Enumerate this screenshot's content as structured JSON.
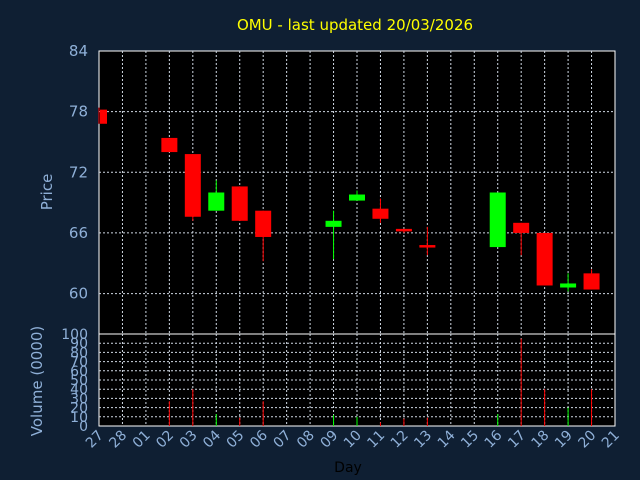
{
  "chart_data": {
    "type": "candlestick",
    "title": "OMU - last updated 20/03/2026",
    "ylabel": "Price",
    "volume_ylabel": "Volume (0000)",
    "xlabel": "Day",
    "ylim": [
      56,
      84
    ],
    "yticks": [
      60,
      66,
      72,
      78,
      84
    ],
    "volume_ylim": [
      0,
      100
    ],
    "volume_yticks": [
      0,
      10,
      20,
      30,
      40,
      50,
      60,
      70,
      80,
      90,
      100
    ],
    "x_tick_labels": [
      "27",
      "28",
      "01",
      "02",
      "03",
      "04",
      "05",
      "06",
      "07",
      "08",
      "09",
      "10",
      "11",
      "12",
      "13",
      "14",
      "15",
      "16",
      "17",
      "18",
      "19",
      "20",
      "21"
    ],
    "grid": true,
    "up_color": "#00ff00",
    "down_color": "#ff0000",
    "candles": [
      {
        "day": "27",
        "open": 78.2,
        "high": 78.4,
        "low": 76.8,
        "close": 76.8,
        "volume": 0
      },
      {
        "day": "02",
        "open": 75.4,
        "high": 75.4,
        "low": 74.0,
        "close": 74.0,
        "volume": 27
      },
      {
        "day": "03",
        "open": 73.8,
        "high": 73.8,
        "low": 67.2,
        "close": 67.6,
        "volume": 40
      },
      {
        "day": "04",
        "open": 68.2,
        "high": 71.2,
        "low": 68.2,
        "close": 70.0,
        "volume": 13
      },
      {
        "day": "05",
        "open": 70.6,
        "high": 70.6,
        "low": 67.2,
        "close": 67.2,
        "volume": 9
      },
      {
        "day": "06",
        "open": 68.2,
        "high": 68.2,
        "low": 63.2,
        "close": 65.6,
        "volume": 27
      },
      {
        "day": "09",
        "open": 66.6,
        "high": 68.2,
        "low": 63.4,
        "close": 67.2,
        "volume": 12
      },
      {
        "day": "10",
        "open": 69.2,
        "high": 70.2,
        "low": 69.2,
        "close": 69.8,
        "volume": 10
      },
      {
        "day": "11",
        "open": 68.4,
        "high": 69.4,
        "low": 67.0,
        "close": 67.4,
        "volume": 4
      },
      {
        "day": "12",
        "open": 66.4,
        "high": 66.4,
        "low": 66.0,
        "close": 66.2,
        "volume": 8
      },
      {
        "day": "13",
        "open": 64.8,
        "high": 66.6,
        "low": 63.8,
        "close": 64.6,
        "volume": 9
      },
      {
        "day": "16",
        "open": 64.6,
        "high": 70.0,
        "low": 64.6,
        "close": 70.0,
        "volume": 13
      },
      {
        "day": "17",
        "open": 67.0,
        "high": 67.0,
        "low": 63.8,
        "close": 66.0,
        "volume": 95
      },
      {
        "day": "18",
        "open": 66.0,
        "high": 66.0,
        "low": 60.8,
        "close": 60.8,
        "volume": 40
      },
      {
        "day": "19",
        "open": 60.6,
        "high": 62.0,
        "low": 60.2,
        "close": 61.0,
        "volume": 20
      },
      {
        "day": "20",
        "open": 62.0,
        "high": 62.4,
        "low": 60.4,
        "close": 60.4,
        "volume": 40
      }
    ]
  }
}
